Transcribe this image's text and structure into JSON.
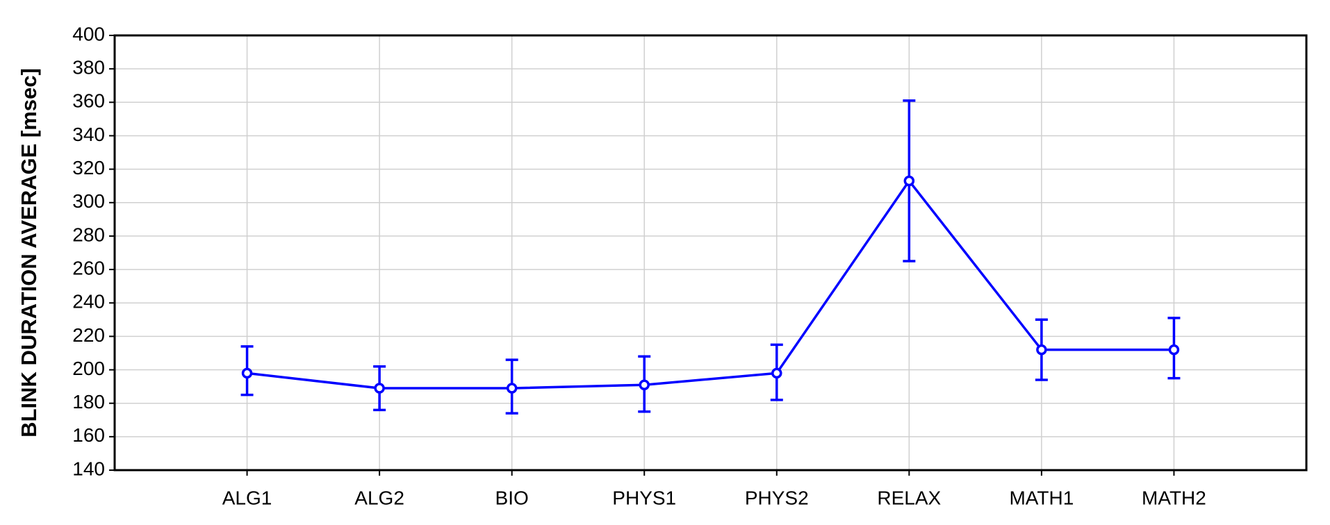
{
  "chart_data": {
    "type": "line",
    "ylabel": "BLINK DURATION AVERAGE [msec]",
    "categories": [
      "ALG1",
      "ALG2",
      "BIO",
      "PHYS1",
      "PHYS2",
      "RELAX",
      "MATH1",
      "MATH2"
    ],
    "series": [
      {
        "color": "#0000ff",
        "values": [
          198,
          189,
          189,
          191,
          198,
          313,
          212,
          212
        ],
        "lower": [
          185,
          176,
          174,
          175,
          182,
          265,
          194,
          195
        ],
        "upper": [
          214,
          202,
          206,
          208,
          215,
          361,
          230,
          231
        ]
      }
    ],
    "ylim": [
      140,
      400
    ],
    "yticks": [
      140,
      160,
      180,
      200,
      220,
      240,
      260,
      280,
      300,
      320,
      340,
      360,
      380,
      400
    ],
    "grid": true
  }
}
